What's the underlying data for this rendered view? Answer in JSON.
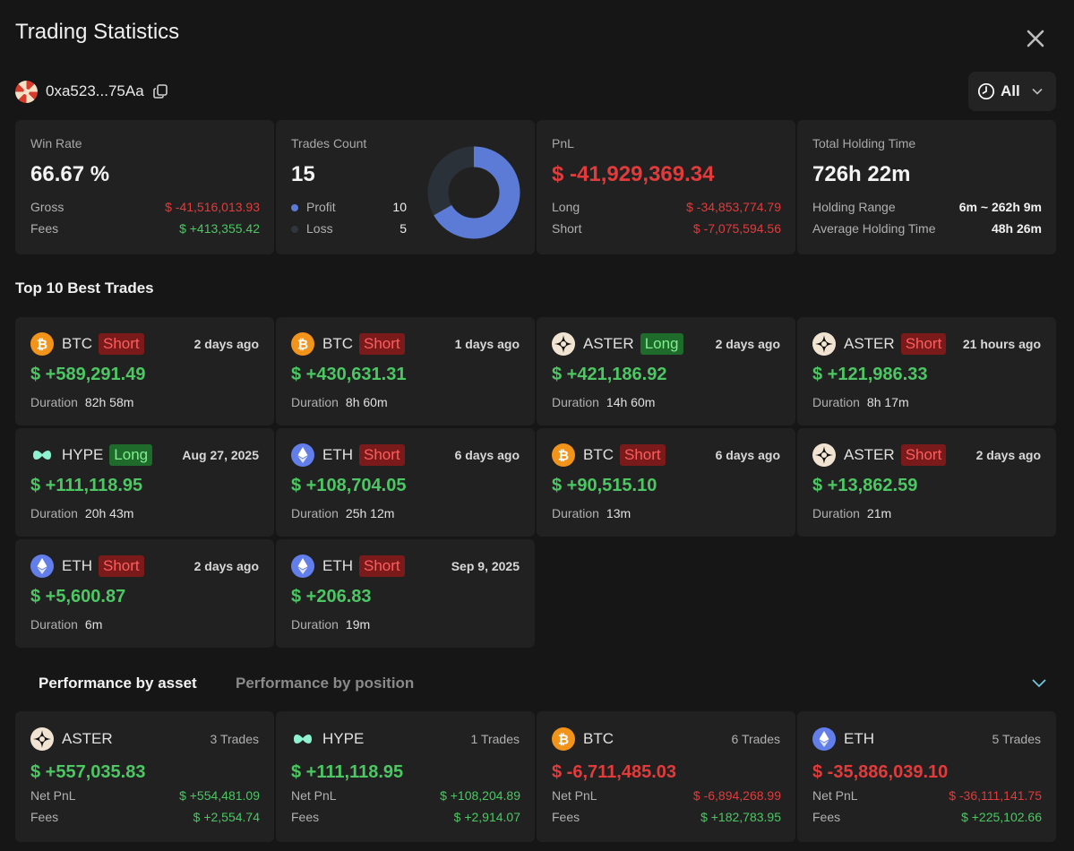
{
  "header": {
    "title": "Trading Statistics",
    "address": "0xa523...75Aa",
    "range_label": "All"
  },
  "stats": {
    "win_rate": {
      "label": "Win Rate",
      "value": "66.67 %",
      "gross_label": "Gross",
      "gross_value": "$ -41,516,013.93",
      "fees_label": "Fees",
      "fees_value": "$ +413,355.42"
    },
    "trades_count": {
      "label": "Trades Count",
      "value": "15",
      "profit_label": "Profit",
      "profit_value": "10",
      "loss_label": "Loss",
      "loss_value": "5",
      "profit_fraction": 0.6667,
      "profit_color": "#5b7bd6",
      "loss_color": "#2b3138"
    },
    "pnl": {
      "label": "PnL",
      "value": "$ -41,929,369.34",
      "long_label": "Long",
      "long_value": "$ -34,853,774.79",
      "short_label": "Short",
      "short_value": "$ -7,075,594.56"
    },
    "holding": {
      "label": "Total Holding Time",
      "value": "726h 22m",
      "range_label": "Holding Range",
      "range_value": "6m ~ 262h 9m",
      "avg_label": "Average Holding Time",
      "avg_value": "48h 26m"
    }
  },
  "best_trades": {
    "title": "Top 10 Best Trades",
    "duration_label": "Duration",
    "items": [
      {
        "coin": "btc-icon",
        "symbol": "BTC",
        "side": "Short",
        "when": "2 days ago",
        "pnl": "$ +589,291.49",
        "duration": "82h 58m"
      },
      {
        "coin": "btc-icon",
        "symbol": "BTC",
        "side": "Short",
        "when": "1 days ago",
        "pnl": "$ +430,631.31",
        "duration": "8h 60m"
      },
      {
        "coin": "aster-icon",
        "symbol": "ASTER",
        "side": "Long",
        "when": "2 days ago",
        "pnl": "$ +421,186.92",
        "duration": "14h 60m"
      },
      {
        "coin": "aster-icon",
        "symbol": "ASTER",
        "side": "Short",
        "when": "21 hours ago",
        "pnl": "$ +121,986.33",
        "duration": "8h 17m"
      },
      {
        "coin": "hype-icon",
        "symbol": "HYPE",
        "side": "Long",
        "when": "Aug 27, 2025",
        "pnl": "$ +111,118.95",
        "duration": "20h 43m"
      },
      {
        "coin": "eth-icon",
        "symbol": "ETH",
        "side": "Short",
        "when": "6 days ago",
        "pnl": "$ +108,704.05",
        "duration": "25h 12m"
      },
      {
        "coin": "btc-icon",
        "symbol": "BTC",
        "side": "Short",
        "when": "6 days ago",
        "pnl": "$ +90,515.10",
        "duration": "13m"
      },
      {
        "coin": "aster-icon",
        "symbol": "ASTER",
        "side": "Short",
        "when": "2 days ago",
        "pnl": "$ +13,862.59",
        "duration": "21m"
      },
      {
        "coin": "eth-icon",
        "symbol": "ETH",
        "side": "Short",
        "when": "2 days ago",
        "pnl": "$ +5,600.87",
        "duration": "6m"
      },
      {
        "coin": "eth-icon",
        "symbol": "ETH",
        "side": "Short",
        "when": "Sep 9, 2025",
        "pnl": "$ +206.83",
        "duration": "19m"
      }
    ]
  },
  "performance": {
    "tab_asset": "Performance by asset",
    "tab_position": "Performance by position",
    "net_label": "Net PnL",
    "fees_label": "Fees",
    "items": [
      {
        "coin": "aster-icon",
        "symbol": "ASTER",
        "trades": "3 Trades",
        "pnl": "$ +557,035.83",
        "pnl_sign": "positive",
        "net": "$ +554,481.09",
        "net_sign": "positive",
        "fees": "$ +2,554.74"
      },
      {
        "coin": "hype-icon",
        "symbol": "HYPE",
        "trades": "1 Trades",
        "pnl": "$ +111,118.95",
        "pnl_sign": "positive",
        "net": "$ +108,204.89",
        "net_sign": "positive",
        "fees": "$ +2,914.07"
      },
      {
        "coin": "btc-icon",
        "symbol": "BTC",
        "trades": "6 Trades",
        "pnl": "$ -6,711,485.03",
        "pnl_sign": "negative",
        "net": "$ -6,894,268.99",
        "net_sign": "negative",
        "fees": "$ +182,783.95"
      },
      {
        "coin": "eth-icon",
        "symbol": "ETH",
        "trades": "5 Trades",
        "pnl": "$ -35,886,039.10",
        "pnl_sign": "negative",
        "net": "$ -36,111,141.75",
        "net_sign": "negative",
        "fees": "$ +225,102.66"
      }
    ]
  }
}
